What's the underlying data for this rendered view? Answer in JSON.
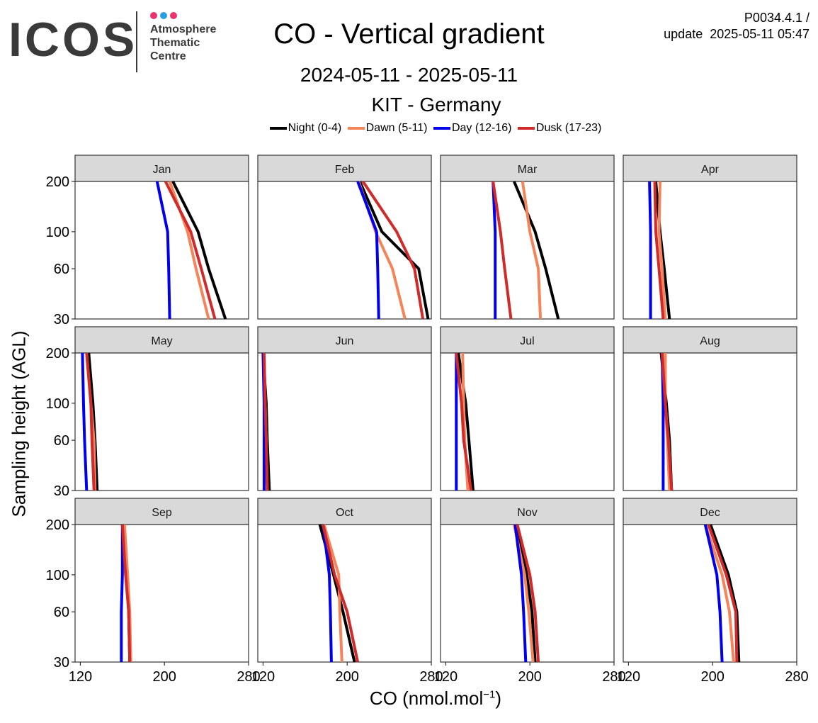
{
  "logo": {
    "text": "ICOS",
    "subtitle_lines": [
      "Atmosphere",
      "Thematic",
      "Centre"
    ],
    "dot_colors": [
      "#e8336d",
      "#2a9fe0",
      "#e8336d"
    ]
  },
  "header": {
    "title": "CO - Vertical gradient",
    "date_range": "2024-05-11 - 2025-05-11",
    "station": "KIT - Germany",
    "version_line1": "P0034.4.1 /",
    "version_line2": "update  2025-05-11 05:47"
  },
  "axes": {
    "ylabel": "Sampling height (AGL)",
    "xlabel_main": "CO (nmol.mol",
    "xlabel_sup": "−1",
    "xlabel_close": ")"
  },
  "chart_data": {
    "type": "line",
    "layout": "facet grid 3x4 (one panel per month)",
    "x_range": [
      115,
      280
    ],
    "x_ticks": [
      120,
      200,
      280
    ],
    "x_tick_labels": [
      "120",
      "200",
      "280"
    ],
    "y_ticks": [
      30,
      60,
      100,
      200
    ],
    "y_tick_labels": [
      "30",
      "60",
      "100",
      "200"
    ],
    "heights": [
      30,
      60,
      100,
      200
    ],
    "legend_position": "top",
    "grid": false,
    "series": [
      {
        "key": "night",
        "name": "Night (0-4)",
        "color": "#000000"
      },
      {
        "key": "dawn",
        "name": "Dawn (5-11)",
        "color": "#f5845b"
      },
      {
        "key": "day",
        "name": "Day (12-16)",
        "color": "#0000ee"
      },
      {
        "key": "dusk",
        "name": "Dusk (17-23)",
        "color": "#d02a2a"
      }
    ],
    "panels": [
      {
        "month": "Jan",
        "night": [
          258,
          242,
          232,
          208
        ],
        "dawn": [
          242,
          230,
          222,
          205
        ],
        "day": [
          205,
          204,
          203,
          193
        ],
        "dusk": [
          248,
          235,
          225,
          201
        ]
      },
      {
        "month": "Feb",
        "night": [
          277,
          268,
          233,
          212
        ],
        "dawn": [
          255,
          243,
          227,
          211
        ],
        "day": [
          230,
          229,
          228,
          210
        ],
        "dusk": [
          272,
          264,
          247,
          215
        ]
      },
      {
        "month": "Mar",
        "night": [
          227,
          215,
          205,
          185
        ],
        "dawn": [
          210,
          208,
          200,
          193
        ],
        "day": [
          167,
          167,
          167,
          165
        ],
        "dusk": [
          182,
          176,
          172,
          165
        ]
      },
      {
        "month": "Apr",
        "night": [
          159,
          154,
          150,
          146
        ],
        "dawn": [
          155,
          152,
          149,
          150
        ],
        "day": [
          141,
          141,
          141,
          140
        ],
        "dusk": [
          153,
          149,
          146,
          145
        ]
      },
      {
        "month": "May",
        "night": [
          136,
          134,
          132,
          128
        ],
        "dawn": [
          134,
          133,
          130,
          126
        ],
        "day": [
          126,
          124,
          123,
          122
        ],
        "dusk": [
          133,
          131,
          130,
          126
        ]
      },
      {
        "month": "Jun",
        "night": [
          126,
          124,
          123,
          120
        ],
        "dawn": [
          124,
          123,
          122,
          121
        ],
        "day": [
          121,
          121,
          121,
          120
        ],
        "dusk": [
          124,
          123,
          122,
          121
        ]
      },
      {
        "month": "Jul",
        "night": [
          146,
          142,
          139,
          132
        ],
        "dawn": [
          141,
          138,
          137,
          136
        ],
        "day": [
          130,
          130,
          130,
          130
        ],
        "dusk": [
          144,
          137,
          135,
          130
        ]
      },
      {
        "month": "Aug",
        "night": [
          161,
          159,
          156,
          151
        ],
        "dawn": [
          159,
          157,
          155,
          155
        ],
        "day": [
          153,
          153,
          153,
          152
        ],
        "dusk": [
          161,
          158,
          155,
          152
        ]
      },
      {
        "month": "Sep",
        "night": [
          167,
          166,
          164,
          160
        ],
        "dawn": [
          168,
          167,
          165,
          162
        ],
        "day": [
          159,
          159,
          160,
          160
        ],
        "dusk": [
          167,
          166,
          163,
          160
        ]
      },
      {
        "month": "Oct",
        "night": [
          207,
          196,
          187,
          174
        ],
        "dawn": [
          195,
          193,
          192,
          178
        ],
        "day": [
          185,
          184,
          183,
          177
        ],
        "dusk": [
          210,
          200,
          188,
          177
        ]
      },
      {
        "month": "Nov",
        "night": [
          205,
          202,
          197,
          187
        ],
        "dawn": [
          203,
          199,
          195,
          185
        ],
        "day": [
          196,
          194,
          192,
          186
        ],
        "dusk": [
          208,
          205,
          200,
          188
        ]
      },
      {
        "month": "Dec",
        "night": [
          225,
          223,
          215,
          198
        ],
        "dawn": [
          220,
          216,
          209,
          193
        ],
        "day": [
          209,
          207,
          204,
          193
        ],
        "dusk": [
          223,
          222,
          213,
          196
        ]
      }
    ]
  }
}
